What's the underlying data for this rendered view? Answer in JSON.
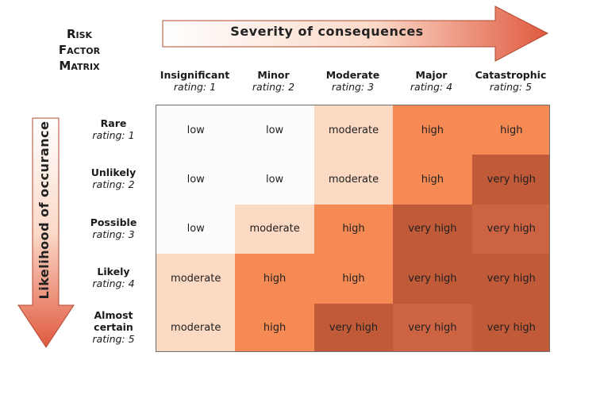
{
  "title": [
    "Risk",
    "Factor",
    "Matrix"
  ],
  "severity_axis_label": "Severity of consequences",
  "likelihood_axis_label": "Likelihood of occurance",
  "columns": [
    {
      "name": "Insignificant",
      "rating": "rating: 1"
    },
    {
      "name": "Minor",
      "rating": "rating: 2"
    },
    {
      "name": "Moderate",
      "rating": "rating: 3"
    },
    {
      "name": "Major",
      "rating": "rating: 4"
    },
    {
      "name": "Catastrophic",
      "rating": "rating: 5"
    }
  ],
  "rows": [
    {
      "name": "Rare",
      "rating": "rating: 1"
    },
    {
      "name": "Unlikely",
      "rating": "rating: 2"
    },
    {
      "name": "Possible",
      "rating": "rating: 3"
    },
    {
      "name": "Likely",
      "rating": "rating: 4"
    },
    {
      "name": "Almost certain",
      "rating": "rating: 5"
    }
  ],
  "cells": [
    [
      "low",
      "low",
      "moderate",
      "high",
      "high"
    ],
    [
      "low",
      "low",
      "moderate",
      "high",
      "very high"
    ],
    [
      "low",
      "moderate",
      "high",
      "very high",
      "very high"
    ],
    [
      "moderate",
      "high",
      "high",
      "very high",
      "very high"
    ],
    [
      "moderate",
      "high",
      "very high",
      "very high",
      "very high"
    ]
  ],
  "colors": {
    "low": "#fdfcfb",
    "moderate": "#fcd9c3",
    "high": "#f58a54",
    "very_high": "#c05a38",
    "arrow_start": "#ffffff",
    "arrow_end": "#e05a40"
  }
}
